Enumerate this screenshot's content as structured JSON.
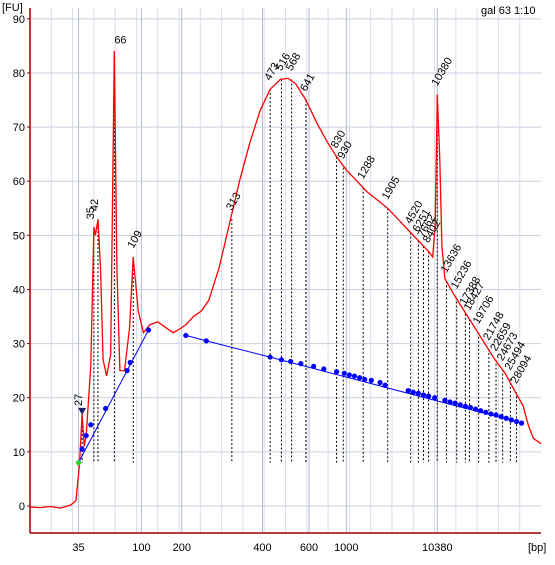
{
  "sample_label": "gal 63 1:10",
  "chart_data": {
    "type": "line",
    "title": "",
    "xlabel": "[bp]",
    "ylabel": "[FU]",
    "ylim": [
      -5,
      92
    ],
    "x_scale": "log (time-based electropherogram)",
    "grid": true,
    "y_ticks": [
      0,
      10,
      20,
      30,
      40,
      50,
      60,
      70,
      80,
      90
    ],
    "x_ticks": [
      {
        "label": "35",
        "t": 0.095
      },
      {
        "label": "100",
        "t": 0.218
      },
      {
        "label": "200",
        "t": 0.297
      },
      {
        "label": "400",
        "t": 0.455
      },
      {
        "label": "600",
        "t": 0.546
      },
      {
        "label": "1000",
        "t": 0.619
      },
      {
        "label": "10380",
        "t": 0.797
      }
    ],
    "trace_colors": {
      "signal": "#ff0000",
      "ladder": "#0000ff",
      "peak_lines": "#000000",
      "axis": "#990000"
    },
    "trace": [
      [
        0.0,
        -0.2
      ],
      [
        0.02,
        -0.3
      ],
      [
        0.04,
        -0.1
      ],
      [
        0.06,
        -0.4
      ],
      [
        0.08,
        0.2
      ],
      [
        0.09,
        1.0
      ],
      [
        0.097,
        8.0
      ],
      [
        0.102,
        17.0
      ],
      [
        0.106,
        11.0
      ],
      [
        0.11,
        13.0
      ],
      [
        0.119,
        26.0
      ],
      [
        0.125,
        51.5
      ],
      [
        0.128,
        50.0
      ],
      [
        0.133,
        53.0
      ],
      [
        0.138,
        44.0
      ],
      [
        0.143,
        27.0
      ],
      [
        0.15,
        24.0
      ],
      [
        0.158,
        28.0
      ],
      [
        0.165,
        84.0
      ],
      [
        0.17,
        44.0
      ],
      [
        0.176,
        25.0
      ],
      [
        0.185,
        25.0
      ],
      [
        0.195,
        33.0
      ],
      [
        0.202,
        46.0
      ],
      [
        0.212,
        36.0
      ],
      [
        0.222,
        32.0
      ],
      [
        0.235,
        33.5
      ],
      [
        0.25,
        34.0
      ],
      [
        0.265,
        33.0
      ],
      [
        0.28,
        32.0
      ],
      [
        0.29,
        32.5
      ],
      [
        0.305,
        33.5
      ],
      [
        0.32,
        35.0
      ],
      [
        0.335,
        36.0
      ],
      [
        0.35,
        38.0
      ],
      [
        0.37,
        44.0
      ],
      [
        0.39,
        52.0
      ],
      [
        0.41,
        60.0
      ],
      [
        0.43,
        67.0
      ],
      [
        0.45,
        73.0
      ],
      [
        0.47,
        77.0
      ],
      [
        0.49,
        78.8
      ],
      [
        0.505,
        79.0
      ],
      [
        0.52,
        78.0
      ],
      [
        0.54,
        75.0
      ],
      [
        0.56,
        71.0
      ],
      [
        0.58,
        67.5
      ],
      [
        0.6,
        64.5
      ],
      [
        0.62,
        62.0
      ],
      [
        0.64,
        60.0
      ],
      [
        0.66,
        58.0
      ],
      [
        0.68,
        56.5
      ],
      [
        0.7,
        55.0
      ],
      [
        0.72,
        53.0
      ],
      [
        0.74,
        51.0
      ],
      [
        0.76,
        49.0
      ],
      [
        0.78,
        47.0
      ],
      [
        0.788,
        46.0
      ],
      [
        0.793,
        52.0
      ],
      [
        0.797,
        76.0
      ],
      [
        0.802,
        64.0
      ],
      [
        0.806,
        48.0
      ],
      [
        0.812,
        42.0
      ],
      [
        0.83,
        39.0
      ],
      [
        0.85,
        36.0
      ],
      [
        0.87,
        33.0
      ],
      [
        0.89,
        30.0
      ],
      [
        0.91,
        27.0
      ],
      [
        0.93,
        24.5
      ],
      [
        0.95,
        21.0
      ],
      [
        0.965,
        18.5
      ],
      [
        0.975,
        15.0
      ],
      [
        0.985,
        12.5
      ],
      [
        1.0,
        11.5
      ]
    ],
    "ladder_points": [
      [
        0.095,
        8.0
      ],
      [
        0.102,
        10.5
      ],
      [
        0.11,
        13.0
      ],
      [
        0.119,
        15.0
      ],
      [
        0.148,
        18.0
      ],
      [
        0.19,
        25.0
      ],
      [
        0.196,
        26.5
      ],
      [
        0.232,
        32.5
      ]
    ],
    "sample_points": [
      [
        0.305,
        31.5
      ],
      [
        0.345,
        30.5
      ],
      [
        0.47,
        27.5
      ],
      [
        0.492,
        27.0
      ],
      [
        0.51,
        26.7
      ],
      [
        0.53,
        26.3
      ],
      [
        0.555,
        25.8
      ],
      [
        0.575,
        25.3
      ],
      [
        0.6,
        24.8
      ],
      [
        0.615,
        24.5
      ],
      [
        0.625,
        24.2
      ],
      [
        0.635,
        24.0
      ],
      [
        0.645,
        23.7
      ],
      [
        0.655,
        23.4
      ],
      [
        0.668,
        23.2
      ],
      [
        0.685,
        22.8
      ],
      [
        0.695,
        22.3
      ],
      [
        0.74,
        21.3
      ],
      [
        0.75,
        21.0
      ],
      [
        0.76,
        20.8
      ],
      [
        0.77,
        20.5
      ],
      [
        0.78,
        20.3
      ],
      [
        0.792,
        20.0
      ],
      [
        0.812,
        19.5
      ],
      [
        0.822,
        19.2
      ],
      [
        0.832,
        19.0
      ],
      [
        0.842,
        18.7
      ],
      [
        0.852,
        18.4
      ],
      [
        0.862,
        18.2
      ],
      [
        0.872,
        17.9
      ],
      [
        0.882,
        17.6
      ],
      [
        0.892,
        17.3
      ],
      [
        0.902,
        17.0
      ],
      [
        0.912,
        16.8
      ],
      [
        0.922,
        16.5
      ],
      [
        0.932,
        16.2
      ],
      [
        0.942,
        15.9
      ],
      [
        0.952,
        15.6
      ],
      [
        0.962,
        15.3
      ]
    ],
    "sample_segments": [
      [
        0.305,
        31.5
      ],
      [
        0.345,
        30.5
      ],
      [
        0.47,
        27.5
      ],
      [
        0.962,
        15.3
      ]
    ],
    "ladder_segments": [
      [
        0.095,
        8.0
      ],
      [
        0.232,
        32.5
      ]
    ],
    "peak_annotations": [
      {
        "label": "27",
        "t": 0.102,
        "y": 17.0,
        "color": "#000000",
        "rot": -90,
        "marker": "triangle"
      },
      {
        "label": "35",
        "t": 0.125,
        "y": 51.5,
        "color": "#339933",
        "rot": -90
      },
      {
        "label": "42",
        "t": 0.133,
        "y": 53.0,
        "color": "#000000",
        "rot": -90
      },
      {
        "label": "66",
        "t": 0.165,
        "y": 84.0,
        "color": "#000000",
        "rot": 0
      },
      {
        "label": "109",
        "t": 0.202,
        "y": 46.0,
        "color": "#000000",
        "rot": -60
      },
      {
        "label": "313",
        "t": 0.395,
        "y": 53.0,
        "color": "#000000",
        "rot": -60
      },
      {
        "label": "473",
        "t": 0.47,
        "y": 77.0,
        "color": "#000000",
        "rot": -60
      },
      {
        "label": "516",
        "t": 0.492,
        "y": 78.8,
        "color": "#000000",
        "rot": -60
      },
      {
        "label": "568",
        "t": 0.512,
        "y": 78.8,
        "color": "#000000",
        "rot": -60
      },
      {
        "label": "641",
        "t": 0.54,
        "y": 75.0,
        "color": "#000000",
        "rot": -60
      },
      {
        "label": "830",
        "t": 0.6,
        "y": 64.5,
        "color": "#000000",
        "rot": -60
      },
      {
        "label": "930",
        "t": 0.613,
        "y": 62.5,
        "color": "#000000",
        "rot": -60
      },
      {
        "label": "1288",
        "t": 0.652,
        "y": 58.8,
        "color": "#000000",
        "rot": -60
      },
      {
        "label": "1905",
        "t": 0.7,
        "y": 55.0,
        "color": "#000000",
        "rot": -60
      },
      {
        "label": "4520",
        "t": 0.745,
        "y": 50.5,
        "color": "#000000",
        "rot": -60
      },
      {
        "label": "6251",
        "t": 0.76,
        "y": 49.0,
        "color": "#000000",
        "rot": -60
      },
      {
        "label": "7662",
        "t": 0.77,
        "y": 48.0,
        "color": "#000000",
        "rot": -60
      },
      {
        "label": "8402",
        "t": 0.78,
        "y": 47.0,
        "color": "#000000",
        "rot": -60
      },
      {
        "label": "10380",
        "t": 0.797,
        "y": 76.0,
        "color": "#9966cc",
        "rot": -60
      },
      {
        "label": "13636",
        "t": 0.815,
        "y": 41.5,
        "color": "#000000",
        "rot": -60
      },
      {
        "label": "15236",
        "t": 0.835,
        "y": 38.5,
        "color": "#000000",
        "rot": -60
      },
      {
        "label": "17388",
        "t": 0.852,
        "y": 35.5,
        "color": "#000000",
        "rot": -60
      },
      {
        "label": "18427",
        "t": 0.86,
        "y": 34.5,
        "color": "#000000",
        "rot": -60
      },
      {
        "label": "19706",
        "t": 0.878,
        "y": 32.0,
        "color": "#000000",
        "rot": -60
      },
      {
        "label": "21748",
        "t": 0.898,
        "y": 29.0,
        "color": "#000000",
        "rot": -60
      },
      {
        "label": "22659",
        "t": 0.912,
        "y": 27.0,
        "color": "#000000",
        "rot": -60
      },
      {
        "label": "24673",
        "t": 0.925,
        "y": 25.2,
        "color": "#000000",
        "rot": -60
      },
      {
        "label": "25494",
        "t": 0.94,
        "y": 23.5,
        "color": "#000000",
        "rot": -60
      },
      {
        "label": "28094",
        "t": 0.952,
        "y": 21.0,
        "color": "#000000",
        "rot": -60
      }
    ],
    "legend": ""
  }
}
